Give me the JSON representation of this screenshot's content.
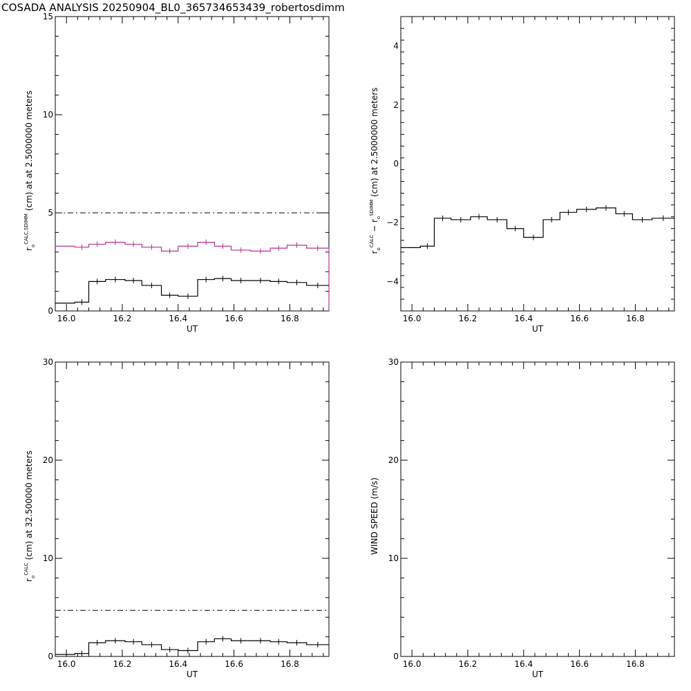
{
  "title": "COSADA ANALYSIS 20250904_BL0_365734653439_robertosdimm",
  "colors": {
    "axis": "#000000",
    "series_black": "#000000",
    "series_magenta": "#b4328c"
  },
  "chart_data": [
    {
      "id": "p1",
      "type": "line",
      "step": true,
      "xlabel": "UT",
      "ylabel_parts": {
        "r": "r",
        "sub": "o",
        "sup": "CALC,SDIMM",
        "rest": "(cm) at  at 2.5000000 meters"
      },
      "xlim": [
        15.96,
        16.94
      ],
      "ylim": [
        0,
        15
      ],
      "xticks": [
        16.0,
        16.2,
        16.4,
        16.6,
        16.8
      ],
      "xtick_labels": [
        "16.0",
        "16.2",
        "16.4",
        "16.6",
        "16.8"
      ],
      "yticks": [
        0,
        5,
        10,
        15
      ],
      "ytick_labels": [
        "0",
        "5",
        "10",
        "15"
      ],
      "hlines": [
        {
          "y": 5.0,
          "style": "dashdot"
        }
      ],
      "series": [
        {
          "color": "magenta",
          "values": [
            [
              15.96,
              3.3
            ],
            [
              16.03,
              3.25
            ],
            [
              16.08,
              3.4
            ],
            [
              16.14,
              3.5
            ],
            [
              16.21,
              3.4
            ],
            [
              16.27,
              3.25
            ],
            [
              16.34,
              3.05
            ],
            [
              16.4,
              3.3
            ],
            [
              16.47,
              3.5
            ],
            [
              16.53,
              3.3
            ],
            [
              16.59,
              3.1
            ],
            [
              16.66,
              3.05
            ],
            [
              16.73,
              3.2
            ],
            [
              16.79,
              3.35
            ],
            [
              16.86,
              3.2
            ],
            [
              16.94,
              3.15
            ]
          ],
          "drop_end": true
        },
        {
          "color": "black",
          "values": [
            [
              15.96,
              0.4
            ],
            [
              16.03,
              0.45
            ],
            [
              16.08,
              1.5
            ],
            [
              16.14,
              1.6
            ],
            [
              16.21,
              1.55
            ],
            [
              16.27,
              1.3
            ],
            [
              16.34,
              0.8
            ],
            [
              16.4,
              0.75
            ],
            [
              16.47,
              1.6
            ],
            [
              16.53,
              1.65
            ],
            [
              16.59,
              1.55
            ],
            [
              16.66,
              1.55
            ],
            [
              16.73,
              1.5
            ],
            [
              16.79,
              1.45
            ],
            [
              16.86,
              1.3
            ],
            [
              16.94,
              1.3
            ]
          ]
        }
      ]
    },
    {
      "id": "p2",
      "type": "line",
      "step": true,
      "xlabel": "UT",
      "ylabel_parts": {
        "r": "r",
        "sub": "o",
        "sup": "CALC",
        "mid": " − r",
        "sub2": "o",
        "sup2": "SDIMM",
        "rest": "(cm) at 2.5000000 meters"
      },
      "xlim": [
        15.96,
        16.94
      ],
      "ylim": [
        -5,
        5
      ],
      "xticks": [
        16.0,
        16.2,
        16.4,
        16.6,
        16.8
      ],
      "xtick_labels": [
        "16.0",
        "16.2",
        "16.4",
        "16.6",
        "16.8"
      ],
      "yticks": [
        -4,
        -2,
        0,
        2,
        4
      ],
      "ytick_labels": [
        "−4",
        "−2",
        "0",
        "2",
        "4"
      ],
      "hlines": [],
      "series": [
        {
          "color": "black",
          "values": [
            [
              15.96,
              -2.85
            ],
            [
              16.03,
              -2.8
            ],
            [
              16.08,
              -1.85
            ],
            [
              16.14,
              -1.9
            ],
            [
              16.21,
              -1.8
            ],
            [
              16.27,
              -1.9
            ],
            [
              16.34,
              -2.2
            ],
            [
              16.4,
              -2.5
            ],
            [
              16.47,
              -1.9
            ],
            [
              16.53,
              -1.65
            ],
            [
              16.59,
              -1.55
            ],
            [
              16.66,
              -1.5
            ],
            [
              16.73,
              -1.7
            ],
            [
              16.79,
              -1.9
            ],
            [
              16.86,
              -1.85
            ],
            [
              16.94,
              -1.85
            ]
          ]
        }
      ]
    },
    {
      "id": "p3",
      "type": "line",
      "step": true,
      "xlabel": "UT",
      "ylabel_parts": {
        "r": "r",
        "sub": "o",
        "sup": "CALC",
        "rest": "(cm) at 32.500000 meters"
      },
      "xlim": [
        15.96,
        16.94
      ],
      "ylim": [
        0,
        30
      ],
      "xticks": [
        16.0,
        16.2,
        16.4,
        16.6,
        16.8
      ],
      "xtick_labels": [
        "16.0",
        "16.2",
        "16.4",
        "16.6",
        "16.8"
      ],
      "yticks": [
        0,
        10,
        20,
        30
      ],
      "ytick_labels": [
        "0",
        "10",
        "20",
        "30"
      ],
      "hlines": [
        {
          "y": 4.7,
          "style": "dashdot"
        }
      ],
      "series": [
        {
          "color": "black",
          "values": [
            [
              15.96,
              0.2
            ],
            [
              16.03,
              0.3
            ],
            [
              16.08,
              1.4
            ],
            [
              16.14,
              1.6
            ],
            [
              16.21,
              1.5
            ],
            [
              16.27,
              1.2
            ],
            [
              16.34,
              0.7
            ],
            [
              16.4,
              0.6
            ],
            [
              16.47,
              1.5
            ],
            [
              16.53,
              1.8
            ],
            [
              16.59,
              1.6
            ],
            [
              16.66,
              1.6
            ],
            [
              16.73,
              1.5
            ],
            [
              16.79,
              1.4
            ],
            [
              16.86,
              1.2
            ],
            [
              16.94,
              1.2
            ]
          ]
        }
      ]
    },
    {
      "id": "p4",
      "type": "line",
      "step": true,
      "xlabel": "UT",
      "ylabel_parts": {
        "rest": "WIND SPEED (m/s)"
      },
      "xlim": [
        15.96,
        16.94
      ],
      "ylim": [
        0,
        30
      ],
      "xticks": [
        16.0,
        16.2,
        16.4,
        16.6,
        16.8
      ],
      "xtick_labels": [
        "16.0",
        "16.2",
        "16.4",
        "16.6",
        "16.8"
      ],
      "yticks": [
        0,
        10,
        20,
        30
      ],
      "ytick_labels": [
        "0",
        "10",
        "20",
        "30"
      ],
      "hlines": [],
      "series": []
    }
  ]
}
